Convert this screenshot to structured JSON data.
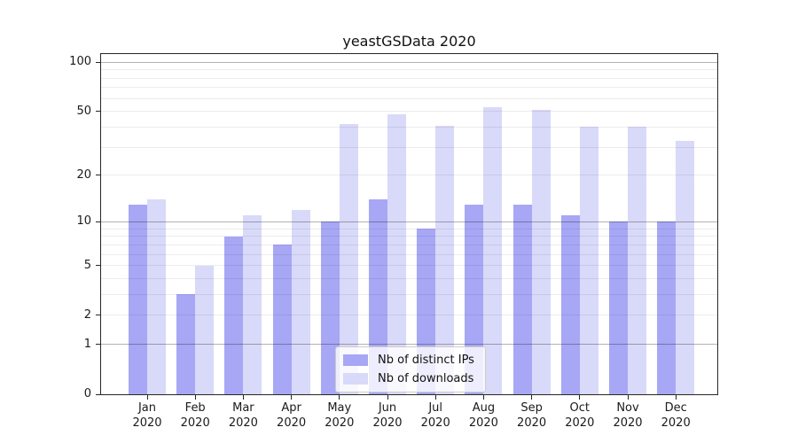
{
  "title": "yeastGSData 2020",
  "chart_data": {
    "type": "bar",
    "title": "yeastGSData 2020",
    "months": [
      "Jan",
      "Feb",
      "Mar",
      "Apr",
      "May",
      "Jun",
      "Jul",
      "Aug",
      "Sep",
      "Oct",
      "Nov",
      "Dec"
    ],
    "year": "2020",
    "series": [
      {
        "key": "distinct_ips",
        "name": "Nb of distinct IPs",
        "color": "#a7a7f5",
        "values": [
          13,
          3,
          8,
          7,
          10,
          14,
          9,
          13,
          13,
          11,
          10,
          10
        ]
      },
      {
        "key": "downloads",
        "name": "Nb of downloads",
        "color": "#d9d9f9",
        "values": [
          14,
          5,
          11,
          12,
          42,
          48,
          41,
          53,
          51,
          40,
          40,
          33
        ]
      }
    ],
    "xlabel": "",
    "ylabel": "",
    "yscale": "log10(1+x)",
    "ylim": [
      0,
      115
    ],
    "yticks": [
      0,
      1,
      2,
      5,
      10,
      20,
      50,
      100
    ],
    "gridlines_minor": [
      2,
      3,
      4,
      5,
      6,
      7,
      8,
      9,
      20,
      30,
      40,
      50,
      60,
      70,
      80,
      90
    ],
    "gridlines_major": [
      1,
      10,
      100
    ],
    "grid": true,
    "legend_position": "lower center"
  }
}
